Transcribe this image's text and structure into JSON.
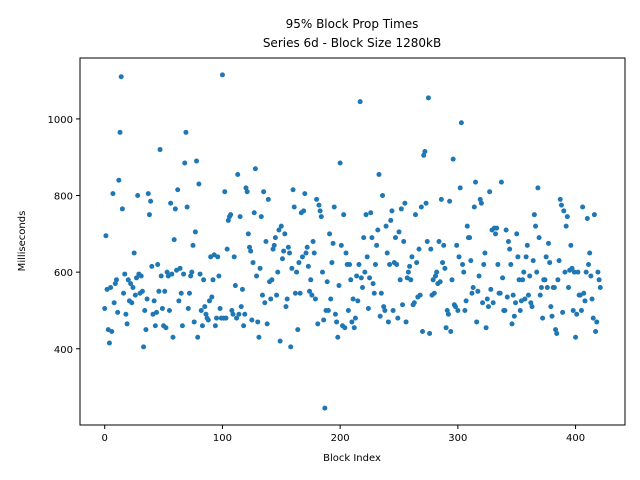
{
  "chart_data": {
    "type": "scatter",
    "title": "95% Block Prop Times",
    "subtitle": "Series 6d - Block Size 1280kB",
    "x_label": "Block Index",
    "y_label": "Milliseconds",
    "color": "#1f77b4",
    "xlim": [
      -21,
      442
    ],
    "ylim": [
      201,
      1159
    ],
    "xticks": [
      0,
      100,
      200,
      300,
      400
    ],
    "yticks": [
      400,
      600,
      800,
      1000
    ],
    "x": [
      0,
      1,
      2,
      3,
      4,
      5,
      6,
      7,
      8,
      9,
      10,
      11,
      12,
      13,
      14,
      15,
      16,
      17,
      18,
      19,
      20,
      21,
      22,
      23,
      24,
      25,
      26,
      27,
      28,
      29,
      30,
      31,
      32,
      33,
      34,
      35,
      36,
      37,
      38,
      39,
      40,
      41,
      42,
      43,
      44,
      45,
      46,
      47,
      48,
      49,
      50,
      51,
      52,
      53,
      54,
      55,
      56,
      57,
      58,
      59,
      60,
      61,
      62,
      63,
      64,
      65,
      66,
      67,
      68,
      69,
      70,
      71,
      72,
      73,
      74,
      75,
      76,
      77,
      78,
      79,
      80,
      81,
      82,
      83,
      84,
      85,
      86,
      87,
      88,
      89,
      90,
      91,
      92,
      93,
      94,
      95,
      96,
      97,
      98,
      99,
      100,
      101,
      102,
      103,
      104,
      105,
      106,
      107,
      108,
      109,
      110,
      111,
      112,
      113,
      114,
      115,
      116,
      117,
      118,
      119,
      120,
      121,
      122,
      123,
      124,
      125,
      126,
      127,
      128,
      129,
      130,
      131,
      132,
      133,
      134,
      135,
      136,
      137,
      138,
      139,
      140,
      141,
      142,
      143,
      144,
      145,
      146,
      147,
      148,
      149,
      150,
      151,
      152,
      153,
      154,
      155,
      156,
      157,
      158,
      159,
      160,
      161,
      162,
      163,
      164,
      165,
      166,
      167,
      168,
      169,
      170,
      171,
      172,
      173,
      174,
      175,
      176,
      177,
      178,
      179,
      180,
      181,
      182,
      183,
      184,
      185,
      186,
      187,
      188,
      189,
      190,
      191,
      192,
      193,
      194,
      195,
      196,
      197,
      198,
      199,
      200,
      201,
      202,
      203,
      204,
      205,
      206,
      207,
      208,
      209,
      210,
      211,
      212,
      213,
      214,
      215,
      216,
      217,
      218,
      219,
      220,
      221,
      222,
      223,
      224,
      225,
      226,
      227,
      228,
      229,
      230,
      231,
      232,
      233,
      234,
      235,
      236,
      237,
      238,
      239,
      240,
      241,
      242,
      243,
      244,
      245,
      246,
      247,
      248,
      249,
      250,
      251,
      252,
      253,
      254,
      255,
      256,
      257,
      258,
      259,
      260,
      261,
      262,
      263,
      264,
      265,
      266,
      267,
      268,
      269,
      270,
      271,
      272,
      273,
      274,
      275,
      276,
      277,
      278,
      279,
      280,
      281,
      282,
      283,
      284,
      285,
      286,
      287,
      288,
      289,
      290,
      291,
      292,
      293,
      294,
      295,
      296,
      297,
      298,
      299,
      300,
      301,
      302,
      303,
      304,
      305,
      306,
      307,
      308,
      309,
      310,
      311,
      312,
      313,
      314,
      315,
      316,
      317,
      318,
      319,
      320,
      321,
      322,
      323,
      324,
      325,
      326,
      327,
      328,
      329,
      330,
      331,
      332,
      333,
      334,
      335,
      336,
      337,
      338,
      339,
      340,
      341,
      342,
      343,
      344,
      345,
      346,
      347,
      348,
      349,
      350,
      351,
      352,
      353,
      354,
      355,
      356,
      357,
      358,
      359,
      360,
      361,
      362,
      363,
      364,
      365,
      366,
      367,
      368,
      369,
      370,
      371,
      372,
      373,
      374,
      375,
      376,
      377,
      378,
      379,
      380,
      381,
      382,
      383,
      384,
      385,
      386,
      387,
      388,
      389,
      390,
      391,
      392,
      393,
      394,
      395,
      396,
      397,
      398,
      399,
      400,
      401,
      402,
      403,
      404,
      405,
      406,
      407,
      408,
      409,
      410,
      411,
      412,
      413,
      414,
      415,
      416,
      417,
      418,
      419,
      420,
      421
    ],
    "values": [
      505,
      695,
      555,
      450,
      415,
      560,
      445,
      805,
      520,
      570,
      580,
      495,
      840,
      965,
      1110,
      765,
      545,
      595,
      490,
      465,
      580,
      525,
      570,
      520,
      560,
      650,
      540,
      585,
      800,
      595,
      545,
      590,
      550,
      405,
      500,
      450,
      530,
      805,
      750,
      785,
      615,
      490,
      525,
      460,
      495,
      620,
      550,
      920,
      590,
      505,
      460,
      550,
      455,
      600,
      590,
      500,
      780,
      595,
      430,
      685,
      765,
      605,
      815,
      525,
      610,
      545,
      460,
      595,
      885,
      965,
      770,
      505,
      545,
      590,
      600,
      670,
      470,
      705,
      890,
      430,
      830,
      595,
      500,
      460,
      580,
      510,
      490,
      480,
      475,
      525,
      640,
      535,
      580,
      645,
      460,
      480,
      640,
      590,
      505,
      480,
      1115,
      480,
      810,
      480,
      660,
      735,
      745,
      750,
      500,
      490,
      640,
      565,
      480,
      855,
      490,
      745,
      510,
      555,
      460,
      490,
      820,
      810,
      700,
      665,
      655,
      475,
      625,
      755,
      870,
      590,
      470,
      430,
      610,
      745,
      540,
      810,
      520,
      680,
      465,
      790,
      575,
      530,
      580,
      660,
      670,
      690,
      540,
      600,
      710,
      420,
      720,
      635,
      655,
      700,
      510,
      530,
      665,
      650,
      405,
      610,
      815,
      770,
      545,
      600,
      450,
      625,
      545,
      755,
      640,
      760,
      805,
      650,
      665,
      615,
      550,
      580,
      540,
      680,
      650,
      530,
      790,
      465,
      775,
      760,
      745,
      600,
      475,
      245,
      500,
      575,
      500,
      700,
      530,
      625,
      675,
      770,
      490,
      470,
      430,
      565,
      885,
      670,
      460,
      750,
      455,
      650,
      620,
      500,
      620,
      580,
      470,
      530,
      455,
      480,
      590,
      525,
      620,
      1045,
      585,
      560,
      690,
      600,
      750,
      640,
      505,
      585,
      755,
      690,
      570,
      545,
      620,
      670,
      710,
      855,
      485,
      545,
      800,
      510,
      500,
      720,
      650,
      470,
      620,
      735,
      760,
      500,
      625,
      690,
      620,
      480,
      705,
      580,
      765,
      515,
      680,
      780,
      470,
      585,
      600,
      615,
      580,
      640,
      515,
      520,
      750,
      625,
      535,
      660,
      540,
      770,
      445,
      905,
      915,
      780,
      680,
      1055,
      440,
      660,
      540,
      580,
      545,
      590,
      600,
      570,
      680,
      575,
      790,
      625,
      670,
      610,
      455,
      500,
      490,
      785,
      445,
      580,
      895,
      515,
      510,
      670,
      500,
      640,
      820,
      990,
      620,
      600,
      500,
      525,
      720,
      690,
      690,
      630,
      545,
      560,
      770,
      835,
      470,
      550,
      590,
      790,
      780,
      520,
      620,
      650,
      455,
      530,
      510,
      810,
      555,
      710,
      520,
      715,
      700,
      715,
      620,
      545,
      545,
      835,
      585,
      500,
      500,
      710,
      535,
      680,
      660,
      620,
      465,
      540,
      485,
      520,
      700,
      640,
      580,
      500,
      525,
      580,
      600,
      530,
      640,
      670,
      540,
      590,
      520,
      510,
      630,
      750,
      720,
      600,
      820,
      690,
      540,
      560,
      480,
      580,
      580,
      640,
      560,
      675,
      625,
      510,
      485,
      560,
      560,
      450,
      440,
      580,
      630,
      790,
      775,
      495,
      760,
      600,
      720,
      745,
      560,
      605,
      670,
      610,
      500,
      600,
      430,
      490,
      600,
      540,
      540,
      500,
      770,
      545,
      525,
      600,
      740,
      620,
      650,
      590,
      530,
      480,
      750,
      445,
      470,
      600,
      580,
      560
    ]
  }
}
